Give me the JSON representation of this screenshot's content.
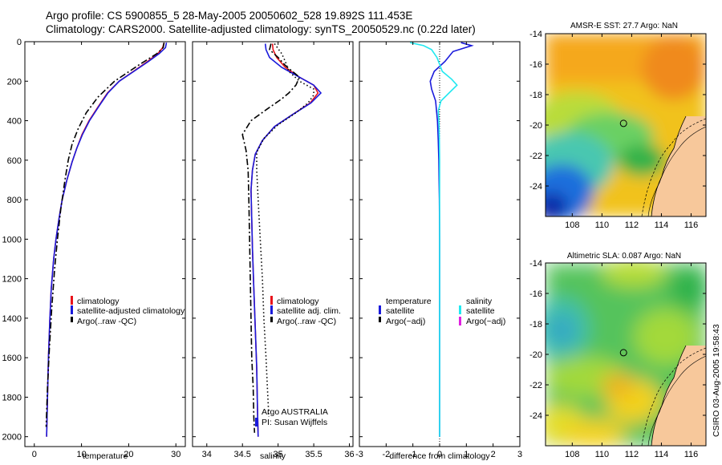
{
  "header": {
    "title_line1": "Argo profile: CS 5900855_5 28-May-2005 20050602_528 19.892S 111.453E",
    "title_line2": "Climatology: CARS2000. Satellite-adjusted climatology: synTS_20050529.nc (0.22d later)"
  },
  "credit": "CSIRO 03-Aug-2005 19:58:43",
  "colors": {
    "climatology": "#e8141c",
    "satellite": "#1a1adc",
    "argo": "#000000",
    "salinity_satellite": "#22e8f0",
    "salinity_argo_adj": "#e020e0",
    "land": "#f7c89b"
  },
  "chart_data": [
    {
      "type": "line",
      "id": "temperature_profile",
      "xlabel": "temperature",
      "ylabel": "",
      "xlim": [
        -2,
        32
      ],
      "ylim": [
        2050,
        0
      ],
      "xticks": [
        0,
        10,
        20,
        30
      ],
      "yticks": [
        0,
        200,
        400,
        600,
        800,
        1000,
        1200,
        1400,
        1600,
        1800,
        2000
      ],
      "legend": [
        "climatology",
        "satellite-adjusted climatology",
        "Argo(..raw -QC)"
      ],
      "series": [
        {
          "name": "climatology",
          "style": "solid",
          "color": "#e8141c",
          "x": [
            27.5,
            27.2,
            26.2,
            24.0,
            21.0,
            18.0,
            15.5,
            13.5,
            11.6,
            10.1,
            9.0,
            8.0,
            6.9,
            5.9,
            5.2,
            4.6,
            4.1,
            3.6,
            3.3,
            3.0,
            2.8,
            2.6
          ],
          "y": [
            5,
            30,
            60,
            100,
            150,
            200,
            260,
            330,
            400,
            470,
            540,
            610,
            700,
            800,
            900,
            1000,
            1100,
            1250,
            1400,
            1600,
            1800,
            2000
          ]
        },
        {
          "name": "satellite-adjusted climatology",
          "style": "solid",
          "color": "#1a1adc",
          "x": [
            28.0,
            27.8,
            26.5,
            24.2,
            21.1,
            18.0,
            15.6,
            13.6,
            11.7,
            10.2,
            9.0,
            8.0,
            6.9,
            5.9,
            5.2,
            4.6,
            4.1,
            3.6,
            3.3,
            3.0,
            2.8,
            2.6
          ],
          "y": [
            5,
            30,
            60,
            100,
            150,
            200,
            260,
            330,
            400,
            470,
            540,
            610,
            700,
            800,
            900,
            1000,
            1100,
            1250,
            1400,
            1600,
            1800,
            2000
          ]
        },
        {
          "name": "Argo(..raw -QC)",
          "style": "dashdot",
          "color": "#000000",
          "x": [
            27.5,
            27.3,
            26.0,
            22.0,
            17.0,
            13.5,
            11.0,
            9.3,
            8.0,
            7.2,
            6.5,
            5.6,
            4.9,
            4.3,
            3.7,
            3.2,
            2.8,
            2.5
          ],
          "y": [
            5,
            30,
            60,
            120,
            200,
            280,
            360,
            440,
            520,
            600,
            700,
            850,
            1000,
            1150,
            1350,
            1550,
            1750,
            1950
          ]
        }
      ]
    },
    {
      "type": "line",
      "id": "salinity_profile",
      "xlabel": "salinity",
      "ylabel": "",
      "xlim": [
        33.8,
        36.05
      ],
      "ylim": [
        2050,
        0
      ],
      "xticks": [
        34,
        34.5,
        35,
        35.5,
        36
      ],
      "yticks": [
        0,
        200,
        400,
        600,
        800,
        1000,
        1200,
        1400,
        1600,
        1800,
        2000
      ],
      "legend": [
        "climatology",
        "satellite adj. clim.",
        "Argo(..raw -QC)"
      ],
      "annotations": [
        "Argo AUSTRALIA",
        "PI: Susan Wijffels"
      ],
      "series": [
        {
          "name": "climatology",
          "style": "solid",
          "color": "#e8141c",
          "x": [
            34.92,
            34.93,
            34.98,
            35.1,
            35.3,
            35.5,
            35.56,
            35.45,
            35.2,
            34.95,
            34.78,
            34.68,
            34.64,
            34.62,
            34.63,
            34.64,
            34.66,
            34.68,
            34.7,
            34.71,
            34.72
          ],
          "y": [
            10,
            40,
            80,
            130,
            180,
            220,
            260,
            310,
            370,
            430,
            500,
            570,
            650,
            750,
            900,
            1050,
            1250,
            1450,
            1650,
            1850,
            2000
          ]
        },
        {
          "name": "satellite adj. clim.",
          "style": "solid",
          "color": "#1a1adc",
          "x": [
            34.82,
            34.83,
            34.88,
            35.05,
            35.3,
            35.5,
            35.6,
            35.46,
            35.2,
            34.95,
            34.78,
            34.68,
            34.64,
            34.62,
            34.63,
            34.64,
            34.66,
            34.68,
            34.7,
            34.71,
            34.72
          ],
          "y": [
            10,
            40,
            80,
            130,
            180,
            220,
            260,
            310,
            370,
            430,
            500,
            570,
            650,
            750,
            900,
            1050,
            1250,
            1450,
            1650,
            1850,
            2000
          ]
        },
        {
          "name": "Argo(..raw -QC)",
          "style": "dashdot",
          "color": "#000000",
          "x": [
            34.9,
            34.88,
            35.0,
            35.1,
            35.3,
            35.25,
            35.15,
            35.05,
            34.85,
            34.62,
            34.5,
            34.55,
            34.58,
            34.59,
            34.6,
            34.61,
            34.62,
            34.63,
            34.65,
            34.66,
            34.67
          ],
          "y": [
            10,
            40,
            80,
            120,
            180,
            220,
            260,
            290,
            340,
            400,
            470,
            550,
            650,
            800,
            1000,
            1200,
            1400,
            1600,
            1750,
            1900,
            1980
          ]
        },
        {
          "name": "",
          "style": "dotted",
          "color": "#000000",
          "x": [
            34.95,
            35.05,
            35.1,
            35.15,
            35.3,
            35.5,
            35.5,
            35.42,
            35.25,
            35.0,
            34.8,
            34.7,
            34.7,
            34.72,
            34.75,
            34.78,
            34.8,
            34.83,
            34.85,
            34.87
          ],
          "y": [
            10,
            60,
            100,
            150,
            200,
            240,
            270,
            310,
            360,
            420,
            490,
            560,
            650,
            800,
            1000,
            1200,
            1400,
            1600,
            1750,
            1900
          ]
        }
      ]
    },
    {
      "type": "line",
      "id": "difference_profile",
      "xlabel": "difference from climatology",
      "ylabel": "",
      "xlim": [
        -3,
        3
      ],
      "ylim": [
        2050,
        0
      ],
      "xticks": [
        -3,
        -2,
        -1,
        0,
        1,
        2,
        3
      ],
      "yticks": [
        0,
        200,
        400,
        600,
        800,
        1000,
        1200,
        1400,
        1600,
        1800,
        2000
      ],
      "legend_left_title": "temperature",
      "legend_right_title": "salinity",
      "legend": [
        "satellite",
        "Argo(~adj)",
        "satellite",
        "Argo(~adj)"
      ],
      "series": [
        {
          "name": "temperature satellite",
          "style": "solid",
          "color": "#1a1adc",
          "x": [
            0.8,
            1.2,
            0.5,
            0.2,
            -0.2,
            -0.35,
            -0.3,
            -0.15,
            -0.08,
            -0.05,
            -0.03,
            -0.02,
            -0.01,
            0.0,
            0.0
          ],
          "y": [
            5,
            20,
            50,
            100,
            150,
            200,
            240,
            300,
            400,
            500,
            600,
            700,
            800,
            1000,
            2000
          ]
        },
        {
          "name": "salinity satellite",
          "style": "solid",
          "color": "#22e8f0",
          "x": [
            -1.1,
            -0.6,
            -0.3,
            -0.1,
            0.1,
            0.45,
            0.65,
            0.35,
            0.05,
            -0.05,
            -0.02,
            -0.01,
            0.0,
            0.0
          ],
          "y": [
            5,
            20,
            40,
            80,
            150,
            190,
            220,
            260,
            300,
            350,
            420,
            500,
            600,
            2000
          ]
        }
      ]
    },
    {
      "type": "heatmap",
      "id": "sst_map",
      "title": "AMSR-E SST: 27.7 Argo: NaN",
      "xlim": [
        106.2,
        117
      ],
      "ylim": [
        -26,
        -14
      ],
      "xticks": [
        108,
        110,
        112,
        114,
        116
      ],
      "yticks": [
        -14,
        -16,
        -18,
        -20,
        -22,
        -24
      ],
      "marker": {
        "lon": 111.45,
        "lat": -19.89
      }
    },
    {
      "type": "heatmap",
      "id": "sla_map",
      "title": "Altimetric SLA: 0.087 Argo: NaN",
      "xlim": [
        106.2,
        117
      ],
      "ylim": [
        -26,
        -14
      ],
      "xticks": [
        108,
        110,
        112,
        114,
        116
      ],
      "yticks": [
        -14,
        -16,
        -18,
        -20,
        -22,
        -24
      ],
      "marker": {
        "lon": 111.45,
        "lat": -19.89
      }
    }
  ]
}
